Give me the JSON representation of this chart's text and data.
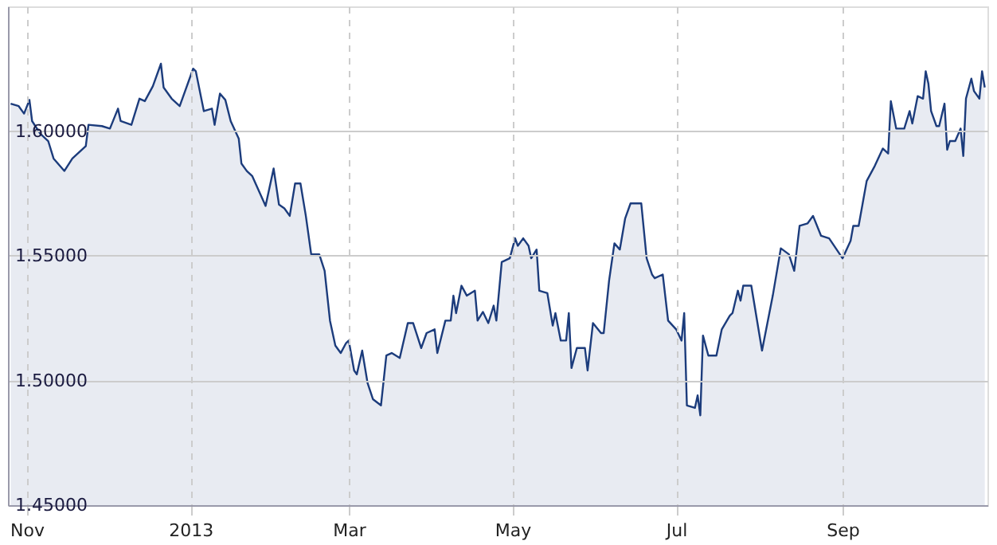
{
  "chart_data": {
    "type": "area",
    "x": [
      "2012-10-26",
      "2012-10-29",
      "2012-10-31",
      "2012-11-02",
      "2012-11-03",
      "2012-11-06",
      "2012-11-09",
      "2012-11-11",
      "2012-11-15",
      "2012-11-18",
      "2012-11-23",
      "2012-11-24",
      "2012-11-29",
      "2012-12-02",
      "2012-12-05",
      "2012-12-06",
      "2012-12-10",
      "2012-12-13",
      "2012-12-15",
      "2012-12-18",
      "2012-12-21",
      "2012-12-22",
      "2012-12-25",
      "2012-12-28",
      "2012-12-30",
      "2013-01-02",
      "2013-01-03",
      "2013-01-06",
      "2013-01-09",
      "2013-01-10",
      "2013-01-12",
      "2013-01-14",
      "2013-01-16",
      "2013-01-19",
      "2013-01-20",
      "2013-01-22",
      "2013-01-24",
      "2013-01-29",
      "2013-02-01",
      "2013-02-03",
      "2013-02-05",
      "2013-02-07",
      "2013-02-09",
      "2013-02-11",
      "2013-02-13",
      "2013-02-15",
      "2013-02-18",
      "2013-02-20",
      "2013-02-22",
      "2013-02-24",
      "2013-02-26",
      "2013-02-28",
      "2013-03-01",
      "2013-03-03",
      "2013-03-04",
      "2013-03-06",
      "2013-03-08",
      "2013-03-10",
      "2013-03-13",
      "2013-03-15",
      "2013-03-17",
      "2013-03-20",
      "2013-03-23",
      "2013-03-25",
      "2013-03-28",
      "2013-03-30",
      "2013-04-02",
      "2013-04-03",
      "2013-04-06",
      "2013-04-08",
      "2013-04-09",
      "2013-04-10",
      "2013-04-12",
      "2013-04-14",
      "2013-04-17",
      "2013-04-18",
      "2013-04-20",
      "2013-04-22",
      "2013-04-24",
      "2013-04-25",
      "2013-04-27",
      "2013-04-30",
      "2013-05-02",
      "2013-05-03",
      "2013-05-05",
      "2013-05-07",
      "2013-05-08",
      "2013-05-10",
      "2013-05-11",
      "2013-05-14",
      "2013-05-16",
      "2013-05-17",
      "2013-05-19",
      "2013-05-21",
      "2013-05-22",
      "2013-05-23",
      "2013-05-25",
      "2013-05-28",
      "2013-05-29",
      "2013-05-31",
      "2013-06-03",
      "2013-06-04",
      "2013-06-06",
      "2013-06-08",
      "2013-06-10",
      "2013-06-12",
      "2013-06-14",
      "2013-06-18",
      "2013-06-20",
      "2013-06-22",
      "2013-06-23",
      "2013-06-26",
      "2013-06-28",
      "2013-07-01",
      "2013-07-03",
      "2013-07-04",
      "2013-07-05",
      "2013-07-08",
      "2013-07-09",
      "2013-07-10",
      "2013-07-11",
      "2013-07-13",
      "2013-07-16",
      "2013-07-18",
      "2013-07-21",
      "2013-07-22",
      "2013-07-24",
      "2013-07-25",
      "2013-07-26",
      "2013-07-29",
      "2013-08-02",
      "2013-08-06",
      "2013-08-09",
      "2013-08-12",
      "2013-08-14",
      "2013-08-16",
      "2013-08-19",
      "2013-08-21",
      "2013-08-24",
      "2013-08-27",
      "2013-09-01",
      "2013-09-04",
      "2013-09-05",
      "2013-09-07",
      "2013-09-10",
      "2013-09-13",
      "2013-09-16",
      "2013-09-18",
      "2013-09-19",
      "2013-09-21",
      "2013-09-24",
      "2013-09-26",
      "2013-09-27",
      "2013-09-29",
      "2013-10-01",
      "2013-10-02",
      "2013-10-03",
      "2013-10-04",
      "2013-10-06",
      "2013-10-07",
      "2013-10-09",
      "2013-10-10",
      "2013-10-11",
      "2013-10-13",
      "2013-10-15",
      "2013-10-16",
      "2013-10-17",
      "2013-10-19",
      "2013-10-20",
      "2013-10-22",
      "2013-10-23",
      "2013-10-24"
    ],
    "series": [
      {
        "color": "#1c3c7c",
        "values": [
          1.611,
          1.61,
          1.607,
          1.6125,
          1.604,
          1.599,
          1.596,
          1.589,
          1.584,
          1.589,
          1.594,
          1.6025,
          1.602,
          1.601,
          1.609,
          1.604,
          1.6025,
          1.613,
          1.612,
          1.618,
          1.627,
          1.6175,
          1.613,
          1.61,
          1.616,
          1.625,
          1.624,
          1.608,
          1.609,
          1.6025,
          1.615,
          1.6125,
          1.604,
          1.597,
          1.587,
          1.584,
          1.582,
          1.57,
          1.585,
          1.5705,
          1.569,
          1.566,
          1.579,
          1.579,
          1.566,
          1.5506,
          1.5506,
          1.544,
          1.524,
          1.514,
          1.511,
          1.515,
          1.516,
          1.504,
          1.5025,
          1.512,
          1.499,
          1.4925,
          1.49,
          1.51,
          1.511,
          1.509,
          1.523,
          1.523,
          1.513,
          1.519,
          1.5205,
          1.511,
          1.524,
          1.524,
          1.534,
          1.527,
          1.538,
          1.534,
          1.536,
          1.524,
          1.5275,
          1.523,
          1.53,
          1.524,
          1.5475,
          1.549,
          1.557,
          1.554,
          1.557,
          1.554,
          1.549,
          1.5525,
          1.536,
          1.535,
          1.522,
          1.527,
          1.516,
          1.516,
          1.527,
          1.505,
          1.513,
          1.513,
          1.504,
          1.523,
          1.519,
          1.519,
          1.54,
          1.555,
          1.5525,
          1.565,
          1.571,
          1.571,
          1.549,
          1.5425,
          1.541,
          1.5425,
          1.524,
          1.5205,
          1.516,
          1.527,
          1.49,
          1.489,
          1.494,
          1.486,
          1.518,
          1.51,
          1.51,
          1.5205,
          1.526,
          1.527,
          1.536,
          1.532,
          1.538,
          1.538,
          1.512,
          1.534,
          1.553,
          1.5506,
          1.544,
          1.562,
          1.563,
          1.566,
          1.558,
          1.557,
          1.549,
          1.556,
          1.562,
          1.562,
          1.58,
          1.586,
          1.593,
          1.591,
          1.612,
          1.601,
          1.601,
          1.608,
          1.603,
          1.614,
          1.613,
          1.624,
          1.619,
          1.608,
          1.602,
          1.602,
          1.611,
          1.5925,
          1.596,
          1.596,
          1.601,
          1.59,
          1.613,
          1.621,
          1.616,
          1.613,
          1.624,
          1.6175
        ]
      }
    ],
    "xlim": [
      "2012-10-25",
      "2013-10-25"
    ],
    "xticks": [
      {
        "value": "2012-11-01",
        "label": "Nov"
      },
      {
        "value": "2013-01-01",
        "label": "2013"
      },
      {
        "value": "2013-03-01",
        "label": "Mar"
      },
      {
        "value": "2013-05-01",
        "label": "May"
      },
      {
        "value": "2013-07-01",
        "label": "Jul"
      },
      {
        "value": "2013-09-01",
        "label": "Sep"
      }
    ],
    "ylim": [
      1.45,
      1.65
    ],
    "yticks": [
      {
        "value": 1.45,
        "label": "1.45000"
      },
      {
        "value": 1.5,
        "label": "1.50000"
      },
      {
        "value": 1.55,
        "label": "1.55000"
      },
      {
        "value": 1.6,
        "label": "1.60000"
      }
    ],
    "grid": true
  }
}
